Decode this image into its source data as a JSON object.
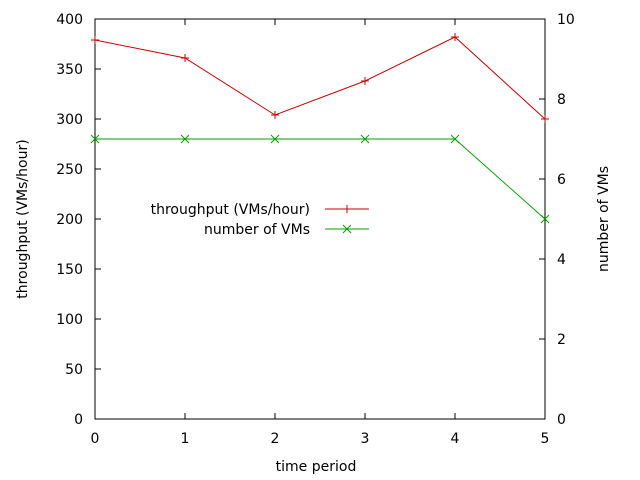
{
  "chart_data": {
    "type": "line",
    "xlabel": "time period",
    "ylabel": "throughput (VMs/hour)",
    "y2label": "number of VMs",
    "x": [
      0,
      1,
      2,
      3,
      4,
      5
    ],
    "xlim": [
      0,
      5
    ],
    "ylim": [
      0,
      400
    ],
    "y2lim": [
      0,
      10
    ],
    "xticks": [
      "0",
      "1",
      "2",
      "3",
      "4",
      "5"
    ],
    "yticks": [
      "0",
      "50",
      "100",
      "150",
      "200",
      "250",
      "300",
      "350",
      "400"
    ],
    "y2ticks": [
      "0",
      "2",
      "4",
      "6",
      "8",
      "10"
    ],
    "grid": false,
    "legend_position": "center-left",
    "series": [
      {
        "name": "throughput (VMs/hour)",
        "axis": "left",
        "marker": "plus",
        "color": "#cc0000",
        "values": [
          379,
          361,
          304,
          338,
          382,
          300
        ]
      },
      {
        "name": "number of VMs",
        "axis": "right",
        "marker": "cross",
        "color": "#00a000",
        "values": [
          7,
          7,
          7,
          7,
          7,
          5
        ]
      }
    ]
  }
}
